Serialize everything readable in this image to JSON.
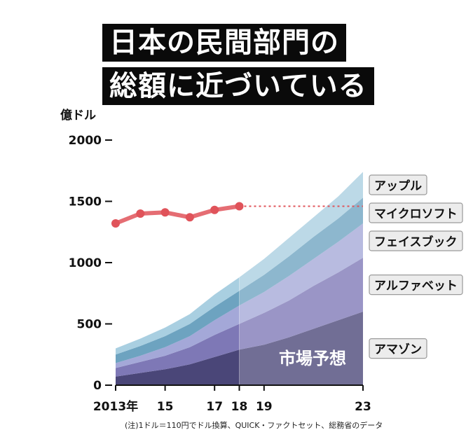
{
  "title_lines": [
    "日本の民間部門の",
    "総額に近づいている"
  ],
  "chart_data": {
    "type": "area",
    "unit_label": "億ドル",
    "ylim": [
      0,
      2000
    ],
    "yticks": [
      {
        "v": 0,
        "label": "0"
      },
      {
        "v": 500,
        "label": "500"
      },
      {
        "v": 1000,
        "label": "1000"
      },
      {
        "v": 1500,
        "label": "1500"
      },
      {
        "v": 2000,
        "label": "2000"
      }
    ],
    "xlim": [
      2013,
      2023
    ],
    "xticks": [
      {
        "v": 2013,
        "label": "2013年"
      },
      {
        "v": 2015,
        "label": "15"
      },
      {
        "v": 2017,
        "label": "17"
      },
      {
        "v": 2018,
        "label": "18"
      },
      {
        "v": 2019,
        "label": "19"
      },
      {
        "v": 2023,
        "label": "23"
      }
    ],
    "forecast_start": 2018,
    "forecast_label": "市場予想",
    "x": [
      2013,
      2014,
      2015,
      2016,
      2017,
      2018,
      2019,
      2020,
      2021,
      2022,
      2023
    ],
    "stacked_series": [
      {
        "name": "アマゾン",
        "color": "#4a4678",
        "values": [
          70,
          100,
          130,
          170,
          230,
          290,
          330,
          390,
          460,
          530,
          600
        ]
      },
      {
        "name": "アルファベット",
        "color": "#7e78b6",
        "values": [
          70,
          90,
          110,
          140,
          180,
          210,
          260,
          300,
          350,
          390,
          440
        ]
      },
      {
        "name": "フェイスブック",
        "color": "#a4a8d8",
        "values": [
          40,
          50,
          70,
          90,
          120,
          150,
          170,
          200,
          220,
          250,
          280
        ]
      },
      {
        "name": "マイクロソフト",
        "color": "#6da3c0",
        "values": [
          70,
          80,
          90,
          100,
          110,
          120,
          140,
          160,
          180,
          190,
          210
        ]
      },
      {
        "name": "アップル",
        "color": "#a9cfe1",
        "values": [
          50,
          60,
          70,
          80,
          100,
          110,
          130,
          150,
          160,
          180,
          210
        ]
      }
    ],
    "line_series": {
      "color": "#e0535a",
      "x": [
        2013,
        2014,
        2015,
        2016,
        2017,
        2018
      ],
      "values": [
        1320,
        1400,
        1410,
        1370,
        1430,
        1460
      ],
      "projection": 1460
    },
    "note": "(注)1ドル＝110円でドル換算、QUICK・ファクトセット、総務省のデータ"
  }
}
